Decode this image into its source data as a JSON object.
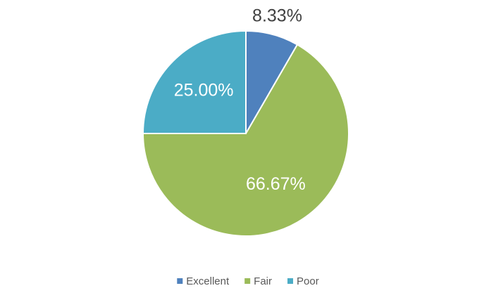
{
  "chart_data": {
    "type": "pie",
    "categories": [
      "Excellent",
      "Fair",
      "Poor"
    ],
    "values": [
      8.33,
      66.67,
      25.0
    ],
    "value_labels": [
      "8.33%",
      "66.67%",
      "25.00%"
    ],
    "colors": [
      "#4f81bd",
      "#9bbb59",
      "#4bacc6"
    ],
    "legend": "bottom"
  }
}
